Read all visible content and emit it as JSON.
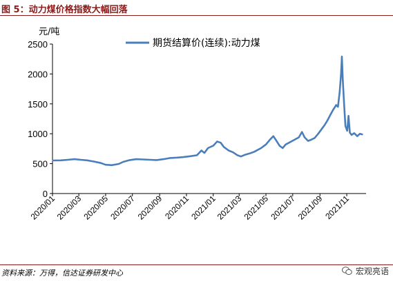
{
  "figure": {
    "title": "图 5：动力煤价格指数大幅回落",
    "source": "资料来源：万得，信达证券研发中心",
    "watermark": "宏观亮语"
  },
  "chart_data": {
    "type": "line",
    "ylabel": "元/吨",
    "ylim": [
      0,
      2500
    ],
    "yticks": [
      0,
      500,
      1000,
      1500,
      2000,
      2500
    ],
    "xlim": [
      "2020-01-01",
      "2021-12-15"
    ],
    "xtick_labels": [
      "2020/01",
      "2020/03",
      "2020/05",
      "2020/07",
      "2020/09",
      "2020/11",
      "2021/01",
      "2021/03",
      "2021/05",
      "2021/07",
      "2021/09",
      "2021/11"
    ],
    "xtick_dates": [
      "2020-01-01",
      "2020-03-01",
      "2020-05-01",
      "2020-07-01",
      "2020-09-01",
      "2020-11-01",
      "2021-01-01",
      "2021-03-01",
      "2021-05-01",
      "2021-07-01",
      "2021-09-01",
      "2021-11-01"
    ],
    "legend_position": "top-center",
    "grid": false,
    "series": [
      {
        "name": "期货结算价(连续):动力煤",
        "color": "#4a7ebb",
        "points": [
          [
            "2020-01-02",
            553
          ],
          [
            "2020-01-20",
            555
          ],
          [
            "2020-02-05",
            565
          ],
          [
            "2020-02-20",
            575
          ],
          [
            "2020-03-05",
            565
          ],
          [
            "2020-03-20",
            555
          ],
          [
            "2020-04-05",
            535
          ],
          [
            "2020-04-20",
            510
          ],
          [
            "2020-05-01",
            482
          ],
          [
            "2020-05-15",
            475
          ],
          [
            "2020-05-31",
            495
          ],
          [
            "2020-06-10",
            530
          ],
          [
            "2020-06-25",
            560
          ],
          [
            "2020-07-10",
            575
          ],
          [
            "2020-07-25",
            570
          ],
          [
            "2020-08-10",
            565
          ],
          [
            "2020-08-25",
            560
          ],
          [
            "2020-09-10",
            575
          ],
          [
            "2020-09-25",
            595
          ],
          [
            "2020-10-10",
            600
          ],
          [
            "2020-10-25",
            610
          ],
          [
            "2020-11-10",
            625
          ],
          [
            "2020-11-25",
            640
          ],
          [
            "2020-12-05",
            720
          ],
          [
            "2020-12-12",
            680
          ],
          [
            "2020-12-20",
            760
          ],
          [
            "2021-01-01",
            800
          ],
          [
            "2021-01-10",
            870
          ],
          [
            "2021-01-18",
            850
          ],
          [
            "2021-01-25",
            780
          ],
          [
            "2021-02-05",
            720
          ],
          [
            "2021-02-15",
            690
          ],
          [
            "2021-02-25",
            640
          ],
          [
            "2021-03-05",
            620
          ],
          [
            "2021-03-15",
            650
          ],
          [
            "2021-03-25",
            670
          ],
          [
            "2021-04-05",
            700
          ],
          [
            "2021-04-20",
            760
          ],
          [
            "2021-05-01",
            820
          ],
          [
            "2021-05-10",
            900
          ],
          [
            "2021-05-18",
            960
          ],
          [
            "2021-05-25",
            880
          ],
          [
            "2021-06-01",
            800
          ],
          [
            "2021-06-08",
            760
          ],
          [
            "2021-06-15",
            820
          ],
          [
            "2021-06-25",
            860
          ],
          [
            "2021-07-05",
            900
          ],
          [
            "2021-07-15",
            940
          ],
          [
            "2021-07-22",
            1030
          ],
          [
            "2021-07-28",
            940
          ],
          [
            "2021-08-05",
            880
          ],
          [
            "2021-08-12",
            900
          ],
          [
            "2021-08-20",
            930
          ],
          [
            "2021-08-28",
            1000
          ],
          [
            "2021-09-05",
            1080
          ],
          [
            "2021-09-12",
            1150
          ],
          [
            "2021-09-18",
            1220
          ],
          [
            "2021-09-25",
            1320
          ],
          [
            "2021-10-01",
            1400
          ],
          [
            "2021-10-08",
            1480
          ],
          [
            "2021-10-12",
            1450
          ],
          [
            "2021-10-16",
            1700
          ],
          [
            "2021-10-19",
            2000
          ],
          [
            "2021-10-21",
            2290
          ],
          [
            "2021-10-23",
            1900
          ],
          [
            "2021-10-26",
            1500
          ],
          [
            "2021-10-29",
            1130
          ],
          [
            "2021-11-02",
            1050
          ],
          [
            "2021-11-05",
            1300
          ],
          [
            "2021-11-08",
            1020
          ],
          [
            "2021-11-12",
            980
          ],
          [
            "2021-11-18",
            1010
          ],
          [
            "2021-11-25",
            960
          ],
          [
            "2021-12-01",
            1000
          ],
          [
            "2021-12-06",
            990
          ]
        ]
      }
    ]
  }
}
